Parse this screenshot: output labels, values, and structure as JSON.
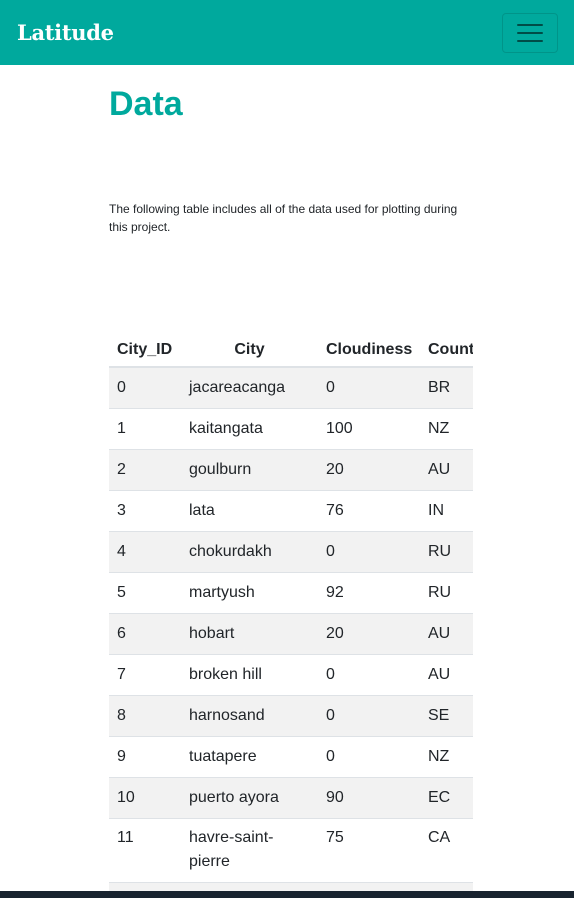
{
  "navbar": {
    "brand": "Latitude",
    "toggle_icon": "hamburger-menu-icon"
  },
  "page": {
    "title": "Data",
    "intro": "The following table includes all of the data used for plotting during this project."
  },
  "table": {
    "headers": [
      "City_ID",
      "City",
      "Cloudiness",
      "Country"
    ],
    "rows": [
      [
        "0",
        "jacareacanga",
        "0",
        "BR"
      ],
      [
        "1",
        "kaitangata",
        "100",
        "NZ"
      ],
      [
        "2",
        "goulburn",
        "20",
        "AU"
      ],
      [
        "3",
        "lata",
        "76",
        "IN"
      ],
      [
        "4",
        "chokurdakh",
        "0",
        "RU"
      ],
      [
        "5",
        "martyush",
        "92",
        "RU"
      ],
      [
        "6",
        "hobart",
        "20",
        "AU"
      ],
      [
        "7",
        "broken hill",
        "0",
        "AU"
      ],
      [
        "8",
        "harnosand",
        "0",
        "SE"
      ],
      [
        "9",
        "tuatapere",
        "0",
        "NZ"
      ],
      [
        "10",
        "puerto ayora",
        "90",
        "EC"
      ],
      [
        "11",
        "havre-saint-pierre",
        "75",
        "CA"
      ]
    ]
  },
  "colors": {
    "brand": "#00a99d",
    "stripe": "#f2f2f2",
    "footer": "#18232f"
  }
}
